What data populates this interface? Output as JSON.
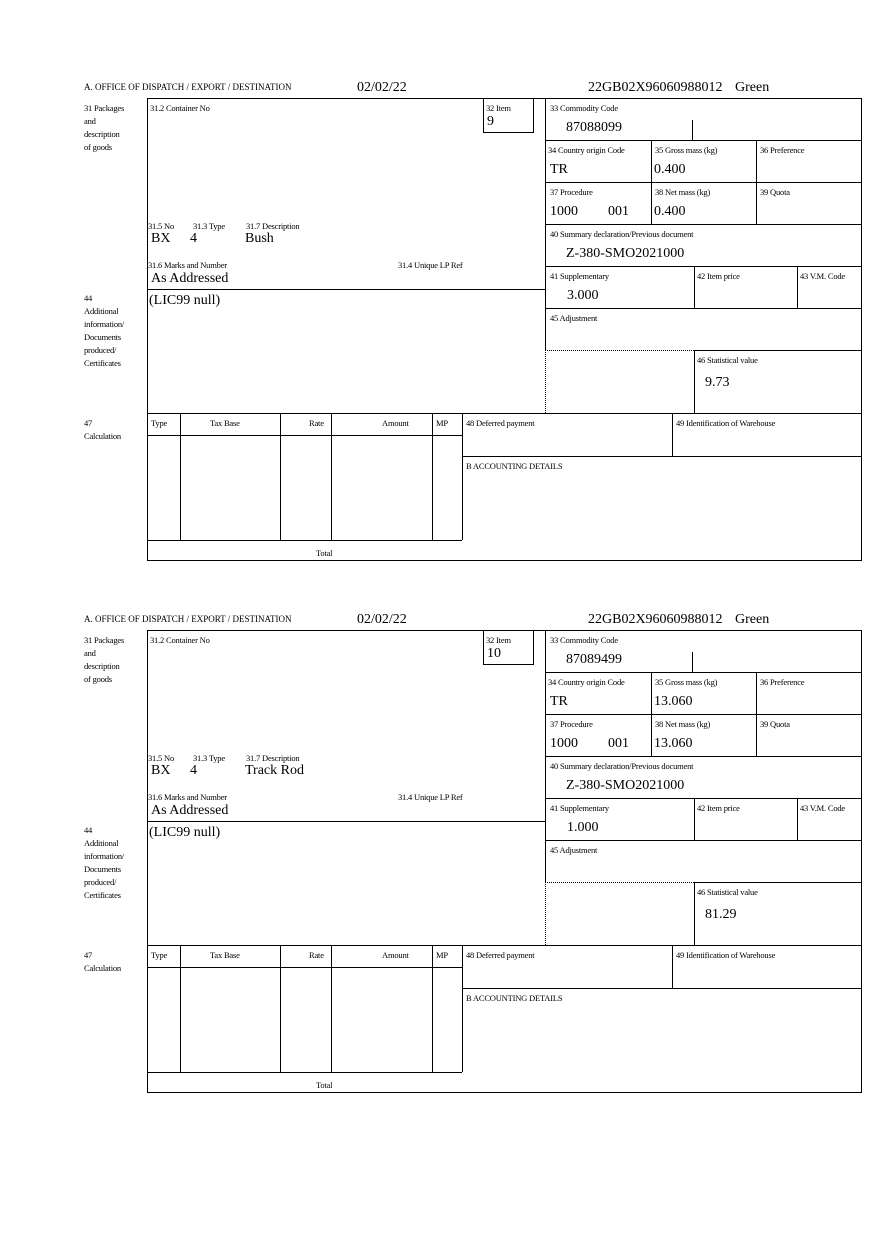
{
  "forms": [
    {
      "header": {
        "office": "A.  OFFICE OF DISPATCH / EXPORT / DESTINATION",
        "date": "02/02/22",
        "reference": "22GB02X96060988012",
        "route": "Green"
      },
      "labels": {
        "packages": [
          "31 Packages",
          "and",
          "description",
          "of goods"
        ],
        "container_no": "31.2 Container No",
        "item": "32 Item",
        "commodity_code": "33 Commodity Code",
        "country_origin": "34 Country origin Code",
        "gross_mass": "35 Gross mass (kg)",
        "preference": "36 Preference",
        "procedure": "37 Procedure",
        "net_mass": "38 Net mass (kg)",
        "quota": "39 Quota",
        "summary_declaration": "40 Summary declaration/Previous document",
        "supplementary": "41 Supplementary",
        "item_price": "42 Item price",
        "vm_code": "43 V.M. Code",
        "adjustment": "45 Adjustment",
        "statistical_value": "46 Statistical value",
        "pkg_no": "31.5 No",
        "pkg_type": "31.3 Type",
        "pkg_description": "31.7 Description",
        "marks": "31.6 Marks and Number",
        "unique_lp_ref": "31.4 Unique LP Ref",
        "additional_info": [
          "44",
          "Additional",
          "information/",
          "Documents",
          "produced/",
          "Certificates"
        ],
        "calc_num": "47",
        "calculation": "Calculation",
        "calc_headers": [
          "Type",
          "Tax Base",
          "Rate",
          "Amount",
          "MP"
        ],
        "total": "Total",
        "deferred_payment": "48 Deferred payment",
        "warehouse": "49 Identification of Warehouse",
        "accounting": "B ACCOUNTING DETAILS"
      },
      "values": {
        "item": "9",
        "commodity_code": "87088099",
        "country_origin": "TR",
        "gross_mass": "0.400",
        "procedure": "1000",
        "procedure_suffix": "001",
        "net_mass": "0.400",
        "summary_declaration": "Z-380-SMO2021000",
        "supplementary": "3.000",
        "statistical_value": "9.73",
        "pkg_no": "BX",
        "pkg_type": "4",
        "pkg_description": "Bush",
        "marks": "As Addressed",
        "additional_info": "(LIC99 null)"
      }
    },
    {
      "header": {
        "office": "A.  OFFICE OF DISPATCH / EXPORT / DESTINATION",
        "date": "02/02/22",
        "reference": "22GB02X96060988012",
        "route": "Green"
      },
      "labels": {
        "packages": [
          "31 Packages",
          "and",
          "description",
          "of goods"
        ],
        "container_no": "31.2 Container No",
        "item": "32 Item",
        "commodity_code": "33 Commodity Code",
        "country_origin": "34 Country origin Code",
        "gross_mass": "35 Gross mass (kg)",
        "preference": "36 Preference",
        "procedure": "37 Procedure",
        "net_mass": "38 Net mass (kg)",
        "quota": "39 Quota",
        "summary_declaration": "40 Summary declaration/Previous document",
        "supplementary": "41 Supplementary",
        "item_price": "42 Item price",
        "vm_code": "43 V.M. Code",
        "adjustment": "45 Adjustment",
        "statistical_value": "46 Statistical value",
        "pkg_no": "31.5 No",
        "pkg_type": "31.3 Type",
        "pkg_description": "31.7 Description",
        "marks": "31.6 Marks and Number",
        "unique_lp_ref": "31.4 Unique LP Ref",
        "additional_info": [
          "44",
          "Additional",
          "information/",
          "Documents",
          "produced/",
          "Certificates"
        ],
        "calc_num": "47",
        "calculation": "Calculation",
        "calc_headers": [
          "Type",
          "Tax Base",
          "Rate",
          "Amount",
          "MP"
        ],
        "total": "Total",
        "deferred_payment": "48 Deferred payment",
        "warehouse": "49 Identification of Warehouse",
        "accounting": "B ACCOUNTING DETAILS"
      },
      "values": {
        "item": "10",
        "commodity_code": "87089499",
        "country_origin": "TR",
        "gross_mass": "13.060",
        "procedure": "1000",
        "procedure_suffix": "001",
        "net_mass": "13.060",
        "summary_declaration": "Z-380-SMO2021000",
        "supplementary": "1.000",
        "statistical_value": "81.29",
        "pkg_no": "BX",
        "pkg_type": "4",
        "pkg_description": "Track Rod",
        "marks": "As Addressed",
        "additional_info": "(LIC99 null)"
      }
    }
  ]
}
